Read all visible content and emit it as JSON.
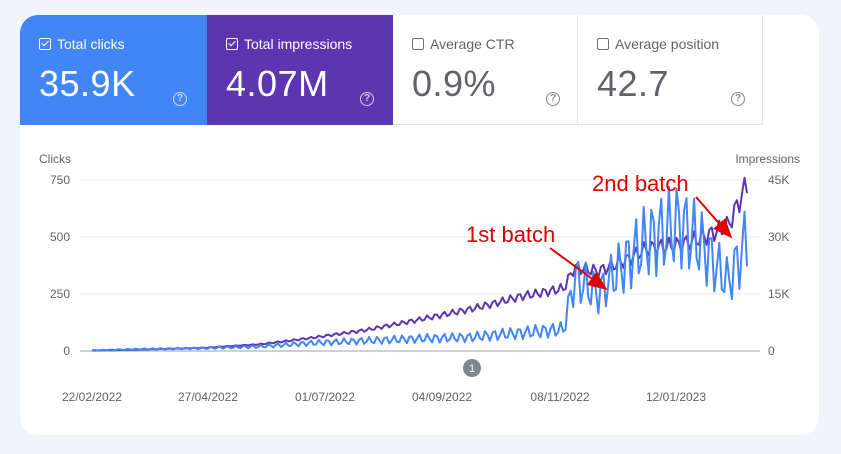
{
  "metrics": [
    {
      "label": "Total clicks",
      "value": "35.9K",
      "checked": true,
      "color": "#4285f4"
    },
    {
      "label": "Total impressions",
      "value": "4.07M",
      "checked": true,
      "color": "#5e35b1"
    },
    {
      "label": "Average CTR",
      "value": "0.9%",
      "checked": false
    },
    {
      "label": "Average position",
      "value": "42.7",
      "checked": false
    }
  ],
  "help_icon_glyph": "?",
  "chart": {
    "left_axis_title": "Clicks",
    "right_axis_title": "Impressions",
    "left_ticks": [
      "750",
      "500",
      "250",
      "0"
    ],
    "right_ticks": [
      "45K",
      "30K",
      "15K",
      "0"
    ],
    "x_ticks": [
      "22/02/2022",
      "27/04/2022",
      "01/07/2022",
      "04/09/2022",
      "08/11/2022",
      "12/01/2023"
    ],
    "marker_label": "1",
    "annotations": [
      "1st batch",
      "2nd batch"
    ],
    "annotation_color": "#e00000"
  },
  "chart_data": {
    "type": "line",
    "x_range": [
      "2022-02-22",
      "2023-03-12"
    ],
    "y_left": {
      "label": "Clicks",
      "range": [
        0,
        750
      ]
    },
    "y_right": {
      "label": "Impressions",
      "range": [
        0,
        45000
      ]
    },
    "grid": true,
    "series": [
      {
        "name": "Total clicks",
        "color": "#4285f4",
        "axis": "left",
        "points": [
          [
            "2022-02-22",
            3
          ],
          [
            "2022-03-22",
            8
          ],
          [
            "2022-04-27",
            12
          ],
          [
            "2022-06-01",
            20
          ],
          [
            "2022-07-01",
            35
          ],
          [
            "2022-08-01",
            45
          ],
          [
            "2022-09-04",
            55
          ],
          [
            "2022-10-01",
            60
          ],
          [
            "2022-10-15",
            70
          ],
          [
            "2022-11-01",
            80
          ],
          [
            "2022-11-08",
            85
          ],
          [
            "2022-11-25",
            95
          ],
          [
            "2022-12-01",
            320
          ],
          [
            "2022-12-15",
            250
          ],
          [
            "2023-01-01",
            400
          ],
          [
            "2023-01-12",
            480
          ],
          [
            "2023-02-01",
            560
          ],
          [
            "2023-02-15",
            450
          ],
          [
            "2023-03-01",
            300
          ],
          [
            "2023-03-12",
            490
          ]
        ]
      },
      {
        "name": "Total impressions",
        "color": "#5e35b1",
        "axis": "right",
        "points": [
          [
            "2022-02-22",
            100
          ],
          [
            "2022-03-22",
            400
          ],
          [
            "2022-04-27",
            800
          ],
          [
            "2022-06-01",
            1800
          ],
          [
            "2022-07-01",
            3500
          ],
          [
            "2022-08-01",
            5500
          ],
          [
            "2022-09-04",
            8500
          ],
          [
            "2022-10-01",
            11000
          ],
          [
            "2022-10-15",
            12500
          ],
          [
            "2022-11-01",
            14500
          ],
          [
            "2022-11-08",
            15000
          ],
          [
            "2022-11-25",
            16500
          ],
          [
            "2022-12-01",
            22000
          ],
          [
            "2022-12-15",
            21000
          ],
          [
            "2023-01-01",
            24000
          ],
          [
            "2023-01-12",
            27000
          ],
          [
            "2023-02-01",
            28000
          ],
          [
            "2023-02-15",
            30000
          ],
          [
            "2023-03-01",
            33000
          ],
          [
            "2023-03-12",
            44000
          ]
        ]
      }
    ]
  }
}
